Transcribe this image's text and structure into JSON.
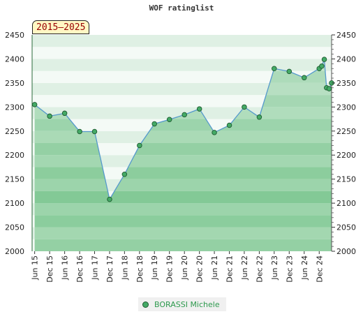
{
  "title": "WOF ratinglist",
  "period_badge": "2015–2025",
  "legend": {
    "player_name": "BORASSI Michele"
  },
  "colors": {
    "line": "#5599cc",
    "marker_fill": "#44aa66",
    "marker_stroke": "#1e5a30",
    "band_light": "#e8f4ec",
    "band_dark": "#7cc690"
  },
  "chart_data": {
    "type": "area",
    "title": "WOF ratinglist",
    "ylim": [
      2000,
      2450
    ],
    "y_ticks": [
      2000,
      2050,
      2100,
      2150,
      2200,
      2250,
      2300,
      2350,
      2400,
      2450
    ],
    "x_range": [
      "2015-05-01",
      "2025-05-01"
    ],
    "x_ticks": [
      "Jun 15",
      "Dec 15",
      "Jun 16",
      "Dec 16",
      "Jun 17",
      "Dec 17",
      "Jun 18",
      "Dec 18",
      "Jun 19",
      "Dec 19",
      "Jun 20",
      "Dec 20",
      "Jun 21",
      "Dec 21",
      "Jun 22",
      "Dec 22",
      "Jun 23",
      "Dec 23",
      "Jun 24",
      "Dec 24"
    ],
    "x_tick_dates": [
      "2015-06-01",
      "2015-12-01",
      "2016-06-01",
      "2016-12-01",
      "2017-06-01",
      "2017-12-01",
      "2018-06-01",
      "2018-12-01",
      "2019-06-01",
      "2019-12-01",
      "2020-06-01",
      "2020-12-01",
      "2021-06-01",
      "2021-12-01",
      "2022-06-01",
      "2022-12-01",
      "2023-06-01",
      "2023-12-01",
      "2024-06-01",
      "2024-12-01"
    ],
    "series": [
      {
        "name": "BORASSI Michele",
        "points": [
          {
            "date": "2015-06-01",
            "value": 2305
          },
          {
            "date": "2015-12-01",
            "value": 2281
          },
          {
            "date": "2016-06-01",
            "value": 2287
          },
          {
            "date": "2016-12-01",
            "value": 2249
          },
          {
            "date": "2017-06-01",
            "value": 2249
          },
          {
            "date": "2017-12-01",
            "value": 2108
          },
          {
            "date": "2018-06-01",
            "value": 2160
          },
          {
            "date": "2018-12-01",
            "value": 2220
          },
          {
            "date": "2019-06-01",
            "value": 2265
          },
          {
            "date": "2019-12-01",
            "value": 2274
          },
          {
            "date": "2020-06-01",
            "value": 2284
          },
          {
            "date": "2020-12-01",
            "value": 2296
          },
          {
            "date": "2021-06-01",
            "value": 2247
          },
          {
            "date": "2021-12-01",
            "value": 2262
          },
          {
            "date": "2022-06-01",
            "value": 2300
          },
          {
            "date": "2022-12-01",
            "value": 2279
          },
          {
            "date": "2023-06-01",
            "value": 2380
          },
          {
            "date": "2023-12-01",
            "value": 2374
          },
          {
            "date": "2024-06-01",
            "value": 2361
          },
          {
            "date": "2024-12-01",
            "value": 2380
          },
          {
            "date": "2025-01-01",
            "value": 2385
          },
          {
            "date": "2025-02-01",
            "value": 2399
          },
          {
            "date": "2025-03-01",
            "value": 2340
          },
          {
            "date": "2025-04-01",
            "value": 2338
          },
          {
            "date": "2025-05-01",
            "value": 2350
          }
        ]
      }
    ],
    "grid": true,
    "legend_position": "bottom-center"
  }
}
